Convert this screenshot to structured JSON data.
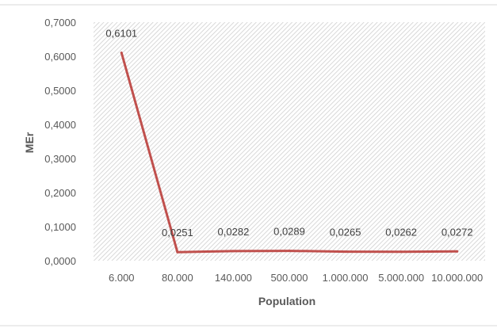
{
  "chart_data": {
    "type": "line",
    "title": "",
    "xlabel": "Population",
    "ylabel": "MEr",
    "categories": [
      "6.000",
      "80.000",
      "140.000",
      "500.000",
      "1.000.000",
      "5.000.000",
      "10.000.000"
    ],
    "series": [
      {
        "values": [
          0.6101,
          0.0251,
          0.0282,
          0.0289,
          0.0265,
          0.0262,
          0.0272
        ],
        "data_labels": [
          "0,6101",
          "0,0251",
          "0,0282",
          "0,0289",
          "0,0265",
          "0,0262",
          "0,0272"
        ],
        "color": "#c0504d"
      }
    ],
    "ylim": [
      0,
      0.7
    ],
    "yticks": [
      0,
      0.1,
      0.2,
      0.3,
      0.4,
      0.5,
      0.6,
      0.7
    ],
    "ytick_labels": [
      "0,0000",
      "0,1000",
      "0,2000",
      "0,3000",
      "0,4000",
      "0,5000",
      "0,6000",
      "0,7000"
    ],
    "grid": false,
    "legend": "none",
    "plot_background": "hatched light gray"
  }
}
